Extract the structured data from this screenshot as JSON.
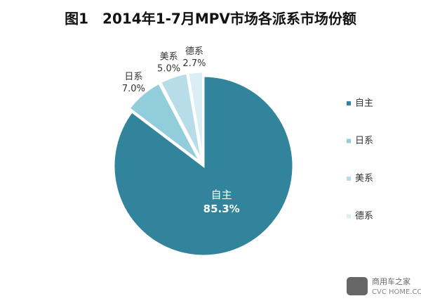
{
  "chart_data": {
    "type": "pie",
    "title": "图1　2014年1-7月MPV市场各派系市场份额",
    "categories": [
      "自主",
      "日系",
      "美系",
      "德系"
    ],
    "values": [
      85.3,
      7.0,
      5.0,
      2.7
    ],
    "value_labels": [
      "85.3%",
      "7.0%",
      "5.0%",
      "2.7%"
    ],
    "colors": [
      "#31849b",
      "#92cddc",
      "#b7dee8",
      "#dbeef3"
    ],
    "legend": "right"
  },
  "watermark": {
    "name": "商用车之家",
    "url": "CVC HOME.COM"
  }
}
